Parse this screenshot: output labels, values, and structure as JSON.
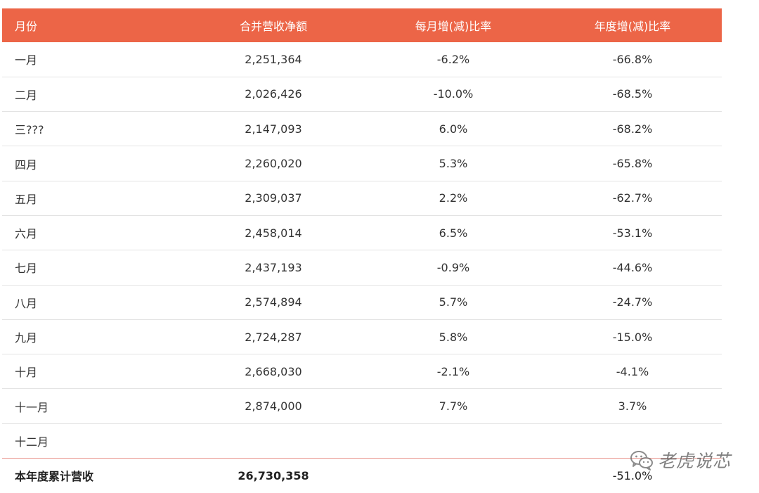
{
  "table": {
    "headers": [
      "月份",
      "合并营收净额",
      "每月增(减)比率",
      "年度增(减)比率"
    ],
    "rows": [
      [
        "一月",
        "2,251,364",
        "-6.2%",
        "-66.8%"
      ],
      [
        "二月",
        "2,026,426",
        "-10.0%",
        "-68.5%"
      ],
      [
        "三???",
        "2,147,093",
        "6.0%",
        "-68.2%"
      ],
      [
        "四月",
        "2,260,020",
        "5.3%",
        "-65.8%"
      ],
      [
        "五月",
        "2,309,037",
        "2.2%",
        "-62.7%"
      ],
      [
        "六月",
        "2,458,014",
        "6.5%",
        "-53.1%"
      ],
      [
        "七月",
        "2,437,193",
        "-0.9%",
        "-44.6%"
      ],
      [
        "八月",
        "2,574,894",
        "5.7%",
        "-24.7%"
      ],
      [
        "九月",
        "2,724,287",
        "5.8%",
        "-15.0%"
      ],
      [
        "十月",
        "2,668,030",
        "-2.1%",
        "-4.1%"
      ],
      [
        "十一月",
        "2,874,000",
        "7.7%",
        "3.7%"
      ],
      [
        "十二月",
        "",
        "",
        ""
      ]
    ],
    "total": [
      "本年度累计营收",
      "26,730,358",
      "",
      "-51.0%"
    ]
  },
  "watermark": {
    "text": "老虎说芯",
    "icon": "wechat-icon"
  },
  "colors": {
    "header_bg": "#ec6547",
    "header_text": "#ffffff",
    "row_divider": "#e3e3e3",
    "total_divider": "#e88e86"
  }
}
